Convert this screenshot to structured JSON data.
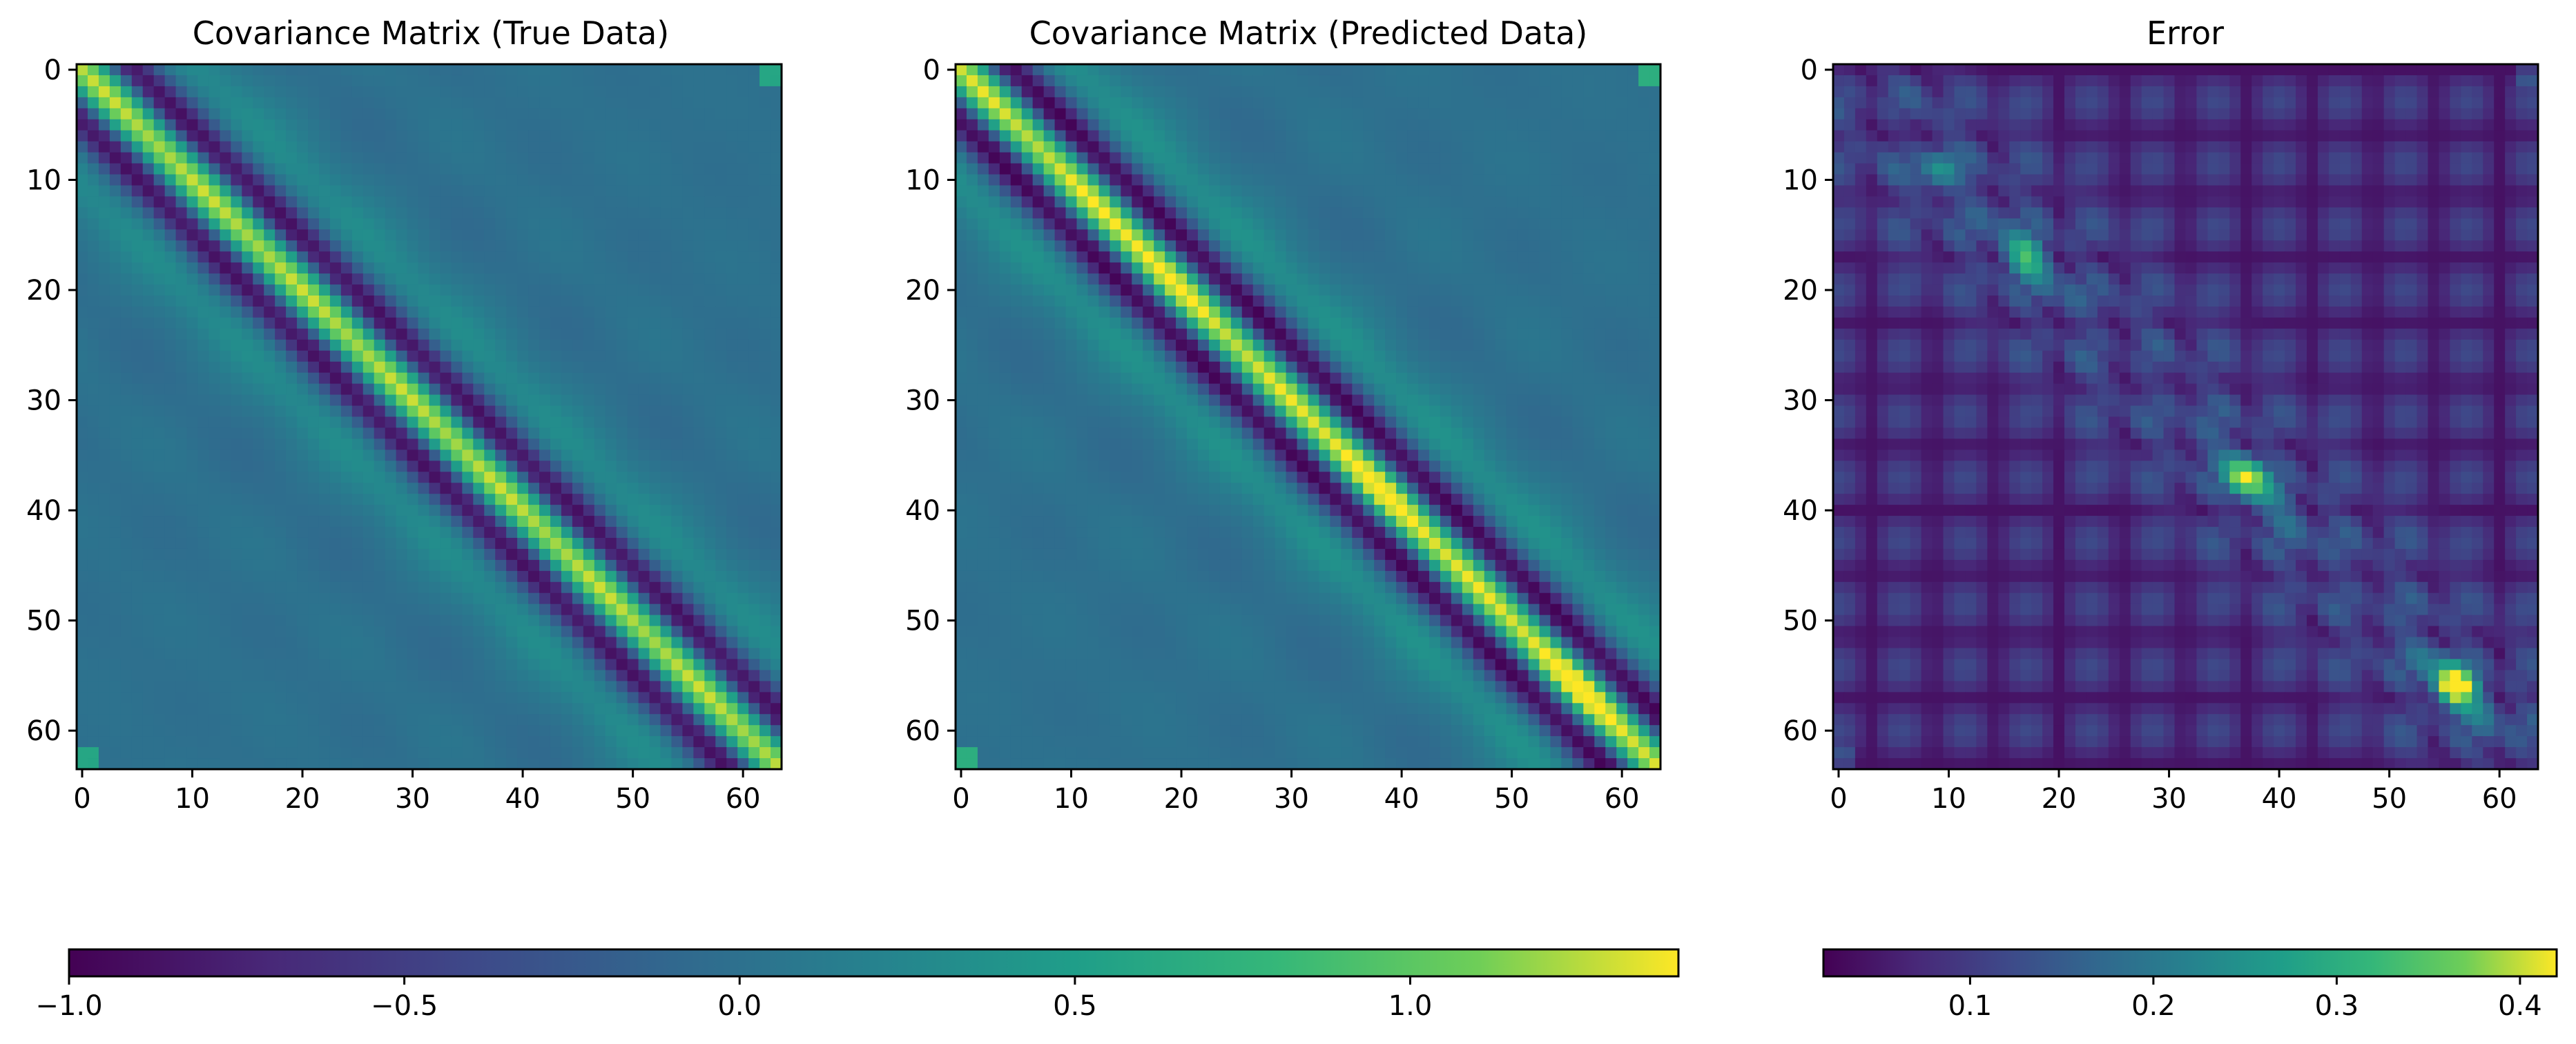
{
  "figure": {
    "panels": [
      {
        "id": "true",
        "title": "Covariance Matrix (True Data)",
        "colorbar": "cov"
      },
      {
        "id": "pred",
        "title": "Covariance Matrix (Predicted Data)",
        "colorbar": "cov"
      },
      {
        "id": "err",
        "title": "Error",
        "colorbar": "err"
      }
    ]
  },
  "chart_data": [
    {
      "type": "heatmap",
      "title": "Covariance Matrix (True Data)",
      "matrix_size": 64,
      "x_ticks": [
        0,
        10,
        20,
        30,
        40,
        50,
        60
      ],
      "y_ticks": [
        0,
        10,
        20,
        30,
        40,
        50,
        60
      ],
      "xlim": [
        -0.5,
        63.5
      ],
      "ylim": [
        63.5,
        -0.5
      ],
      "colormap": "viridis",
      "value_range": [
        -1.0,
        1.4
      ],
      "description_values": {
        "diagonal": 1.15,
        "first_off_band": -0.85,
        "background": 0.05
      },
      "pattern": "diagonal-banded (Toeplitz-like) covariance"
    },
    {
      "type": "heatmap",
      "title": "Covariance Matrix (Predicted Data)",
      "matrix_size": 64,
      "x_ticks": [
        0,
        10,
        20,
        30,
        40,
        50,
        60
      ],
      "y_ticks": [
        0,
        10,
        20,
        30,
        40,
        50,
        60
      ],
      "xlim": [
        -0.5,
        63.5
      ],
      "ylim": [
        63.5,
        -0.5
      ],
      "colormap": "viridis",
      "value_range": [
        -1.0,
        1.4
      ],
      "description_values": {
        "diagonal": 1.4,
        "first_off_band": -0.95,
        "background": 0.05
      },
      "pattern": "diagonal-banded covariance, stronger diagonal around indices 15-20, 35-40, 55-58"
    },
    {
      "type": "heatmap",
      "title": "Error",
      "matrix_size": 64,
      "x_ticks": [
        0,
        10,
        20,
        30,
        40,
        50,
        60
      ],
      "y_ticks": [
        0,
        10,
        20,
        30,
        40,
        50,
        60
      ],
      "xlim": [
        -0.5,
        63.5
      ],
      "ylim": [
        63.5,
        -0.5
      ],
      "colormap": "viridis",
      "value_range": [
        0.02,
        0.42
      ],
      "hotspots": [
        {
          "row": 9,
          "col": 9,
          "value": 0.3
        },
        {
          "row": 17,
          "col": 17,
          "value": 0.33
        },
        {
          "row": 37,
          "col": 37,
          "value": 0.38
        },
        {
          "row": 56,
          "col": 56,
          "value": 0.42
        }
      ]
    }
  ],
  "colorbars": {
    "cov": {
      "ticks": [
        -1.0,
        -0.5,
        0.0,
        0.5,
        1.0
      ],
      "tick_labels": [
        "−1.0",
        "−0.5",
        "0.0",
        "0.5",
        "1.0"
      ],
      "range": [
        -1.0,
        1.4
      ],
      "colormap": "viridis",
      "orientation": "horizontal"
    },
    "err": {
      "ticks": [
        0.1,
        0.2,
        0.3,
        0.4
      ],
      "tick_labels": [
        "0.1",
        "0.2",
        "0.3",
        "0.4"
      ],
      "range": [
        0.02,
        0.42
      ],
      "colormap": "viridis",
      "orientation": "horizontal"
    }
  }
}
